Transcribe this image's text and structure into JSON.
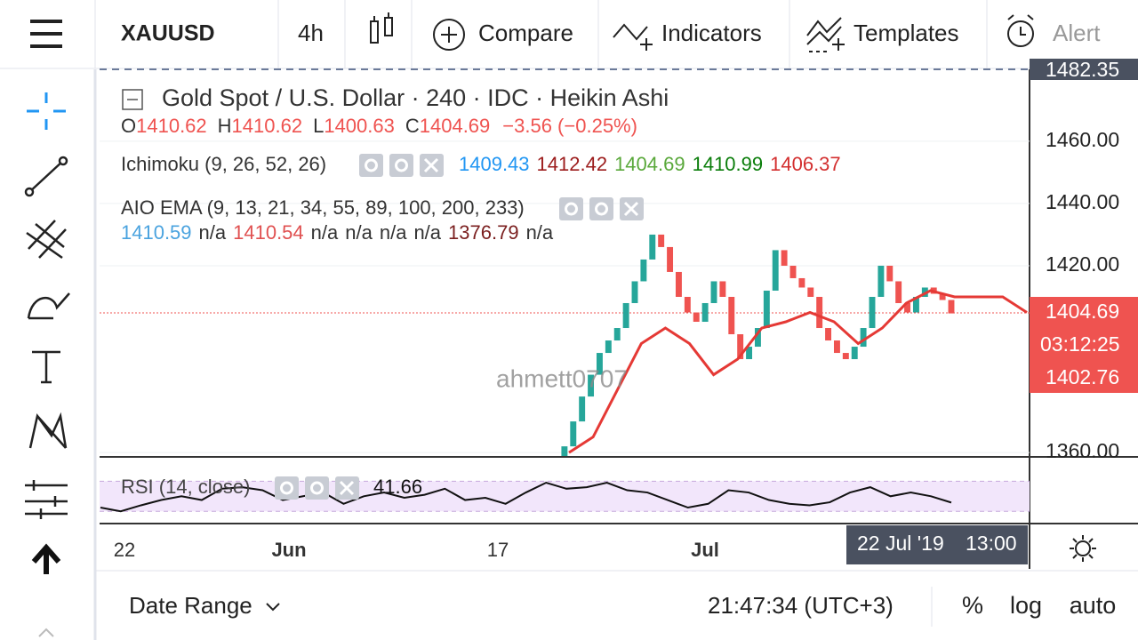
{
  "toolbar": {
    "symbol": "XAUUSD",
    "interval": "4h",
    "buttons": [
      "Compare",
      "Indicators",
      "Templates",
      "Alert"
    ]
  },
  "legend": {
    "title": "Gold Spot / U.S. Dollar · 240 · IDC · Heikin Ashi",
    "ohlc": [
      {
        "label": "O",
        "value": "1410.62"
      },
      {
        "label": "H",
        "value": "1410.62"
      },
      {
        "label": "L",
        "value": "1400.63"
      },
      {
        "label": "C",
        "value": "1404.69"
      }
    ],
    "change": "−3.56 (−0.25%)"
  },
  "indicators": [
    {
      "name": "Ichimoku (9, 26, 52, 26)",
      "values": [
        {
          "text": "1409.43",
          "color": "#2196f3"
        },
        {
          "text": "1412.42",
          "color": "#9c1c1c"
        },
        {
          "text": "1404.69",
          "color": "#59a83a"
        },
        {
          "text": "1410.99",
          "color": "#0a7d0a"
        },
        {
          "text": "1406.37",
          "color": "#d32f2f"
        }
      ]
    },
    {
      "name": "AIO EMA (9, 13, 21, 34, 55, 89, 100, 200, 233)",
      "values": [
        {
          "text": "1410.59",
          "color": "#4aa3df"
        },
        {
          "text": "n/a",
          "color": "#333333"
        },
        {
          "text": "1410.54",
          "color": "#e05050"
        },
        {
          "text": "n/a",
          "color": "#333333"
        },
        {
          "text": "n/a",
          "color": "#333333"
        },
        {
          "text": "n/a",
          "color": "#333333"
        },
        {
          "text": "n/a",
          "color": "#333333"
        },
        {
          "text": "1376.79",
          "color": "#7b1f1f"
        },
        {
          "text": "n/a",
          "color": "#333333"
        }
      ]
    }
  ],
  "chart_data": {
    "type": "candlestick",
    "up_color": "#26a69a",
    "down_color": "#ef5350",
    "closes": [
      1358,
      1362,
      1370,
      1378,
      1385,
      1392,
      1396,
      1400,
      1408,
      1415,
      1422,
      1430,
      1426,
      1418,
      1410,
      1405,
      1402,
      1408,
      1415,
      1410,
      1398,
      1390,
      1394,
      1400,
      1412,
      1425,
      1420,
      1416,
      1413,
      1410,
      1400,
      1396,
      1392,
      1390,
      1394,
      1400,
      1410,
      1420,
      1415,
      1408,
      1405,
      1410,
      1413,
      1411,
      1409,
      1404.69
    ],
    "kijun": [
      1360,
      1365,
      1380,
      1395,
      1400,
      1395,
      1385,
      1390,
      1400,
      1402,
      1405,
      1402,
      1395,
      1400,
      1408,
      1412,
      1410,
      1410,
      1410,
      1405
    ],
    "kijun_color": "#e53935",
    "ylim": [
      1358.9,
      1482.5
    ],
    "yticks": [
      {
        "value": 1360,
        "label": "1360.00"
      },
      {
        "value": 1420,
        "label": "1420.00"
      },
      {
        "value": 1440,
        "label": "1440.00"
      },
      {
        "value": 1460,
        "label": "1460.00"
      }
    ],
    "top_label": "1482.35",
    "last_price": "1404.69",
    "countdown": "03:12:25",
    "prev_price": "1402.76"
  },
  "rsi": {
    "name": "RSI (14, close)",
    "value": "41.66",
    "ylim": [
      15,
      101
    ],
    "band": [
      30,
      70
    ],
    "values": [
      35,
      30,
      38,
      45,
      50,
      45,
      60,
      62,
      58,
      45,
      50,
      55,
      40,
      50,
      55,
      48,
      52,
      60,
      45,
      48,
      40,
      55,
      68,
      60,
      62,
      68,
      58,
      55,
      45,
      35,
      40,
      58,
      55,
      45,
      40,
      38,
      42,
      55,
      62,
      50,
      55,
      50,
      41.66
    ]
  },
  "time_axis": {
    "labels": [
      "22",
      "Jun",
      "17",
      "Jul"
    ],
    "cursor_date": "22 Jul '19",
    "cursor_time": "13:00"
  },
  "watermark": "ahmett0707",
  "bottom_bar": {
    "date_range": "Date Range",
    "clock": "21:47:34 (UTC+3)",
    "options": [
      "%",
      "log",
      "auto"
    ]
  }
}
